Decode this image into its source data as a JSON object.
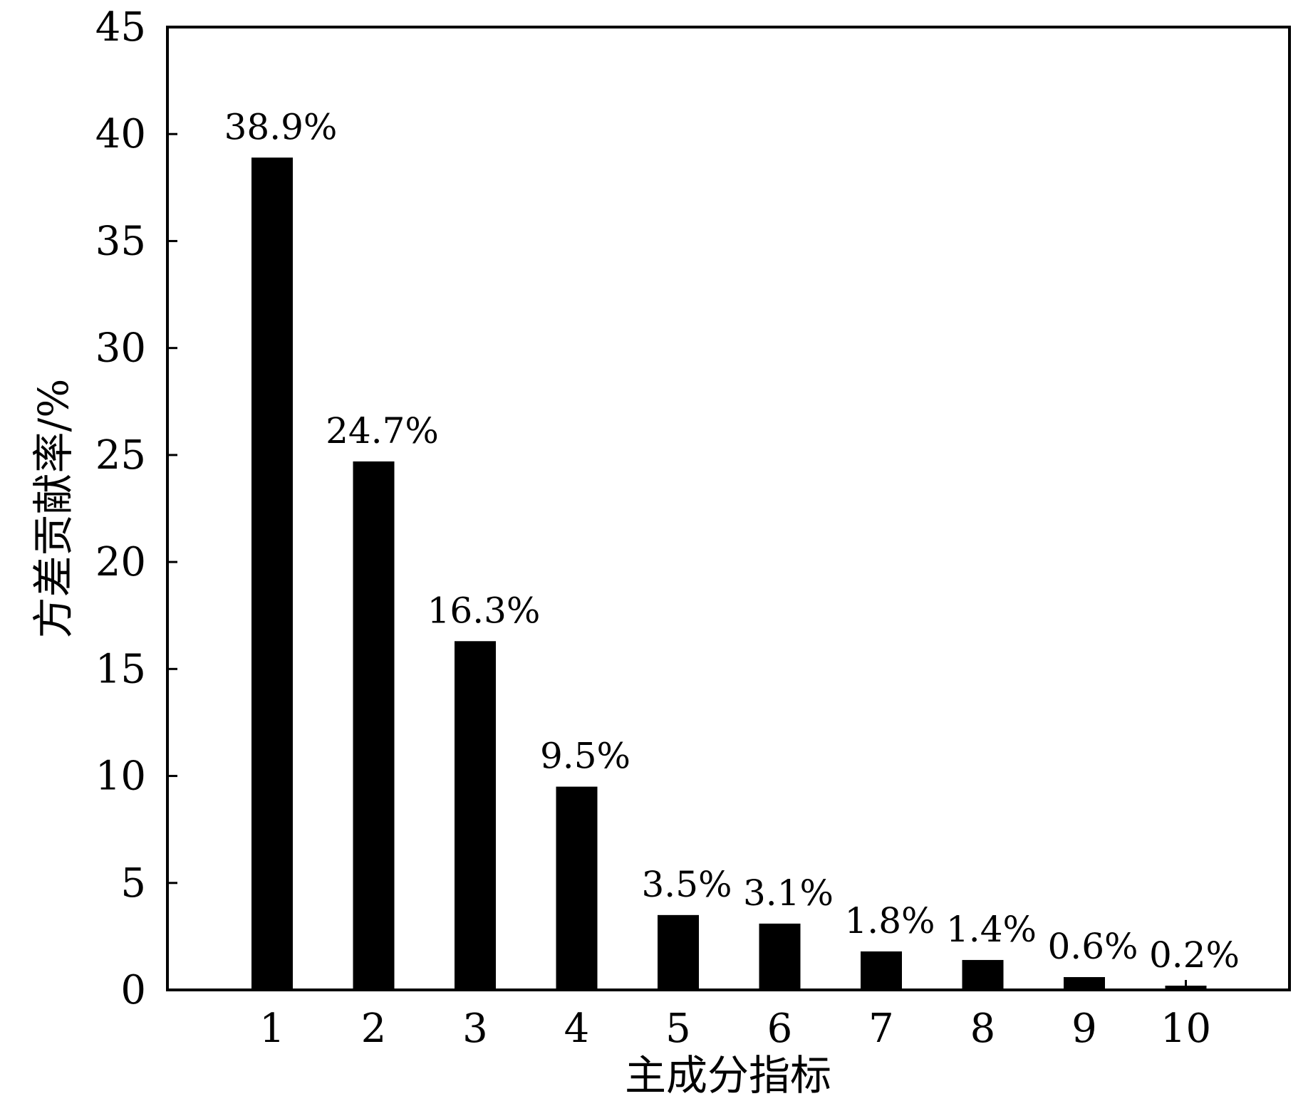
{
  "chart_data": {
    "type": "bar",
    "categories": [
      "1",
      "2",
      "3",
      "4",
      "5",
      "6",
      "7",
      "8",
      "9",
      "10"
    ],
    "values": [
      38.9,
      24.7,
      16.3,
      9.5,
      3.5,
      3.1,
      1.8,
      1.4,
      0.6,
      0.2
    ],
    "data_labels": [
      "38.9%",
      "24.7%",
      "16.3%",
      "9.5%",
      "3.5%",
      "3.1%",
      "1.8%",
      "1.4%",
      "0.6%",
      "0.2%"
    ],
    "xlabel": "主成分指标",
    "ylabel": "方差贡献率/%",
    "ylim": [
      0,
      45
    ],
    "yticks": [
      0,
      5,
      10,
      15,
      20,
      25,
      30,
      35,
      40,
      45
    ],
    "grid": false,
    "bar_color": "#000000"
  }
}
